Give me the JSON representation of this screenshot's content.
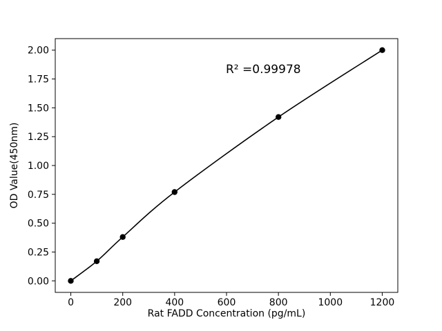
{
  "chart_data": {
    "type": "scatter",
    "title": "",
    "xlabel": "Rat FADD Concentration (pg/mL)",
    "ylabel": "OD Value(450nm)",
    "annotation": "R² =0.99978",
    "x": [
      0,
      100,
      200,
      400,
      800,
      1200
    ],
    "y": [
      0.0,
      0.17,
      0.38,
      0.77,
      1.42,
      2.0
    ],
    "x_ticks": [
      0,
      200,
      400,
      600,
      800,
      1000,
      1200
    ],
    "y_ticks": [
      "0.00",
      "0.25",
      "0.50",
      "0.75",
      "1.00",
      "1.25",
      "1.50",
      "1.75",
      "2.00"
    ],
    "xlim": [
      -60,
      1260
    ],
    "ylim": [
      -0.1,
      2.1
    ],
    "grid": false,
    "legend": "none",
    "fit_curve": true,
    "line_color": "#000000",
    "marker_color": "#000000",
    "background": "#ffffff"
  }
}
